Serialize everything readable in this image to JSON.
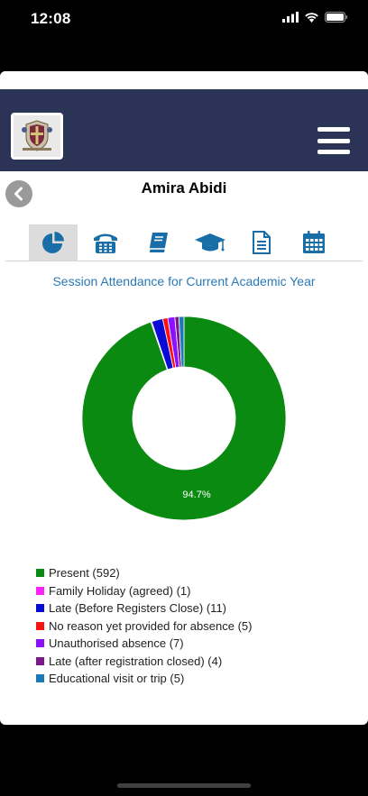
{
  "status_bar": {
    "time": "12:08"
  },
  "student": {
    "name": "Amira Abidi"
  },
  "tabs": [
    {
      "icon": "pie-chart-icon",
      "active": true
    },
    {
      "icon": "phone-icon",
      "active": false
    },
    {
      "icon": "book-icon",
      "active": false
    },
    {
      "icon": "graduation-cap-icon",
      "active": false
    },
    {
      "icon": "document-icon",
      "active": false
    },
    {
      "icon": "calendar-icon",
      "active": false
    }
  ],
  "chart_data": {
    "type": "pie",
    "title": "Session Attendance for Current Academic Year",
    "donut": true,
    "categories": [
      "Present",
      "Family Holiday (agreed)",
      "Late (Before Registers Close)",
      "No reason yet provided for absence",
      "Unauthorised absence",
      "Late (after registration closed)",
      "Educational visit or trip"
    ],
    "values": [
      592,
      1,
      11,
      5,
      7,
      4,
      5
    ],
    "colors": [
      "#0a8a10",
      "#ff22ff",
      "#0a0ad6",
      "#ff1010",
      "#8a10ff",
      "#7a1a8a",
      "#1a7ab8"
    ],
    "slice_label": "94.7%",
    "legend": [
      "Present (592)",
      "Family Holiday (agreed) (1)",
      "Late (Before Registers Close) (11)",
      "No reason yet provided for absence (5)",
      "Unauthorised absence (7)",
      "Late (after registration closed) (4)",
      "Educational visit or trip (5)"
    ],
    "legend_position": "bottom-left"
  },
  "colors": {
    "header_bg": "#2b3456",
    "accent_blue": "#2a79b6",
    "tab_icon": "#1a6ea8"
  }
}
